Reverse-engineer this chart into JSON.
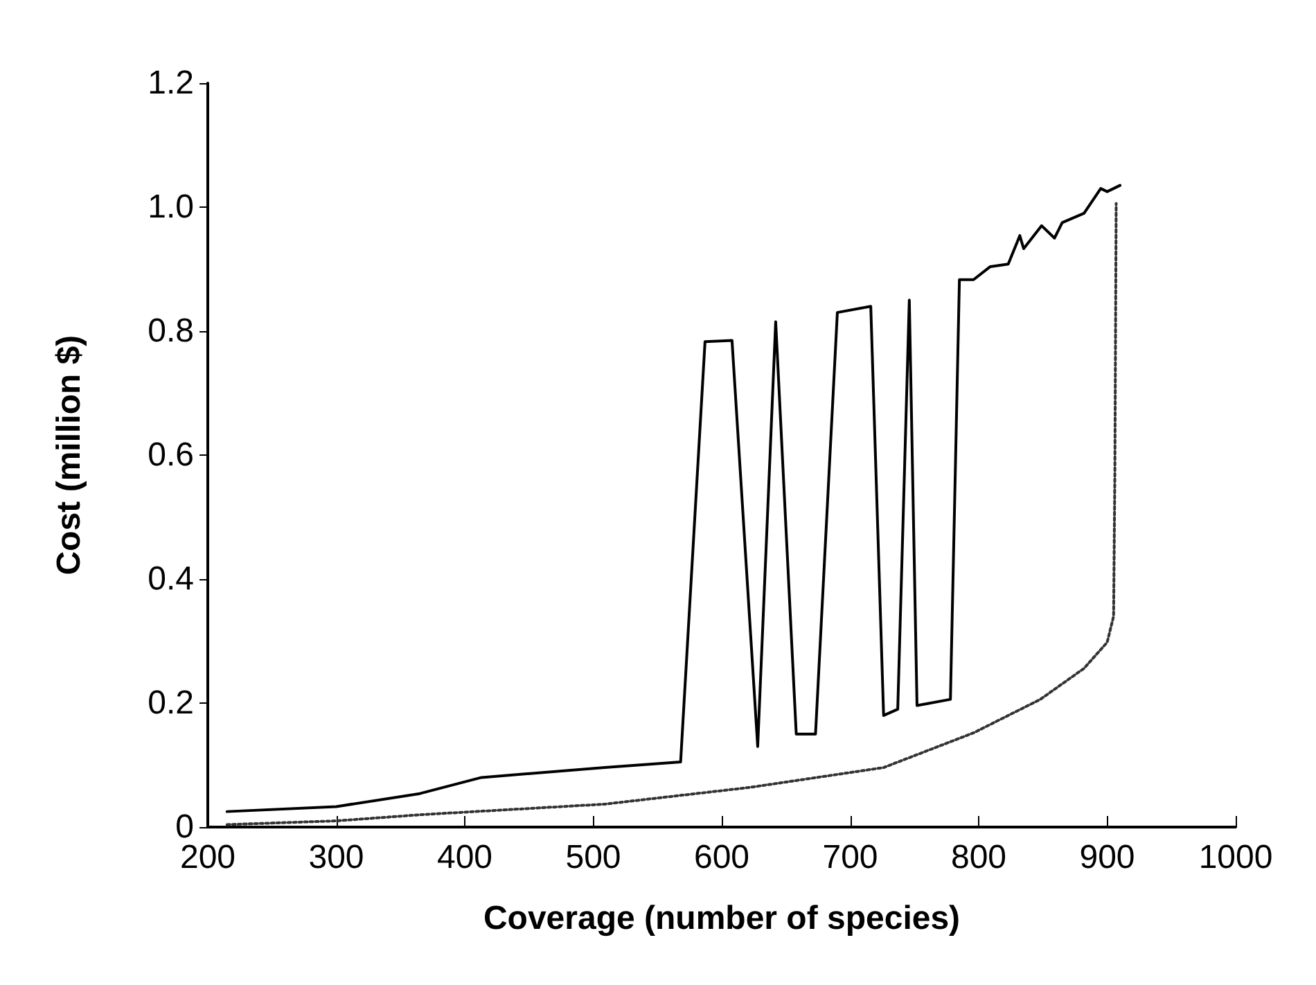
{
  "chart_data": {
    "type": "line",
    "xlabel": "Coverage (number of species)",
    "ylabel": "Cost (million $)",
    "xlim": [
      200,
      1000
    ],
    "ylim": [
      0,
      1.2
    ],
    "xticks": [
      200,
      300,
      400,
      500,
      600,
      700,
      800,
      900,
      1000
    ],
    "yticks": [
      0,
      {
        "value": 0.2,
        "label": "0.2"
      },
      {
        "value": 0.4,
        "label": "0.4"
      },
      {
        "value": 0.6,
        "label": "0.6"
      },
      {
        "value": 0.8,
        "label": "0.8"
      },
      {
        "value": 1.0,
        "label": "1.0"
      },
      {
        "value": 1.2,
        "label": "1.2"
      }
    ],
    "grid": false,
    "marker": "none",
    "series": [
      {
        "color": "#000000",
        "line_style": "solid",
        "x": [
          215,
          300,
          365,
          413,
          509,
          568,
          587,
          608,
          628,
          642,
          658,
          673,
          690,
          716,
          726,
          737,
          746,
          752,
          778,
          785,
          796,
          809,
          823,
          832,
          835,
          849,
          859,
          865,
          882,
          895,
          900,
          910
        ],
        "values": [
          0.025,
          0.033,
          0.054,
          0.08,
          0.096,
          0.105,
          0.783,
          0.785,
          0.13,
          0.815,
          0.15,
          0.15,
          0.83,
          0.84,
          0.18,
          0.19,
          0.85,
          0.196,
          0.206,
          0.883,
          0.883,
          0.904,
          0.908,
          0.954,
          0.933,
          0.97,
          0.95,
          0.975,
          0.99,
          1.03,
          1.025,
          1.035
        ]
      },
      {
        "color": "#333333",
        "line_style": "dotted",
        "x": [
          215,
          300,
          366,
          509,
          622,
          726,
          796,
          848,
          882,
          900,
          905,
          906,
          907
        ],
        "values": [
          0.004,
          0.01,
          0.02,
          0.037,
          0.064,
          0.096,
          0.152,
          0.206,
          0.256,
          0.298,
          0.34,
          0.575,
          1.006
        ]
      }
    ]
  }
}
